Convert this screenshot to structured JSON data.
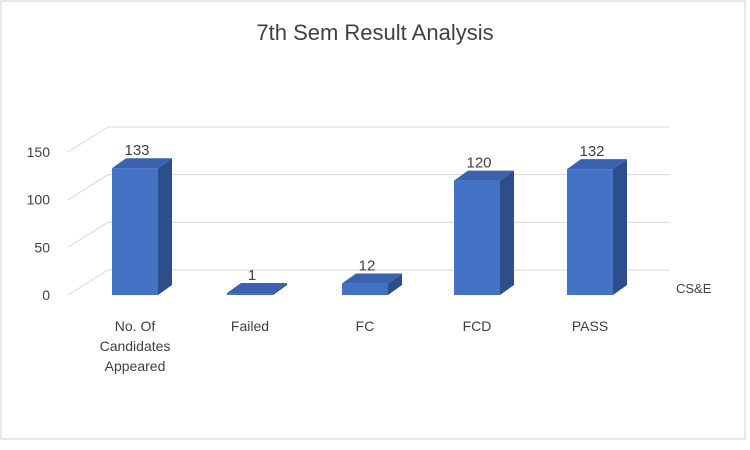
{
  "chart_data": {
    "type": "bar",
    "title": "7th Sem Result Analysis",
    "categories": [
      "No. Of Candidates Appeared",
      "Failed",
      "FC",
      "FCD",
      "PASS"
    ],
    "category_lines": [
      [
        "No. Of",
        "Candidates",
        "Appeared"
      ],
      [
        "Failed"
      ],
      [
        "FC"
      ],
      [
        "FCD"
      ],
      [
        "PASS"
      ]
    ],
    "series": [
      {
        "name": "CS&E",
        "values": [
          133,
          1,
          12,
          120,
          132
        ]
      }
    ],
    "y_ticks": [
      "0",
      "50",
      "100",
      "150"
    ],
    "ylim": [
      0,
      150
    ],
    "grid": true,
    "legend_position": "right",
    "style": "3d-column",
    "colors": {
      "front": "#4472C4",
      "side": "#2C4E8A",
      "top": "#3A62AE",
      "text": "#404040",
      "grid": "#D9D9D9"
    }
  }
}
